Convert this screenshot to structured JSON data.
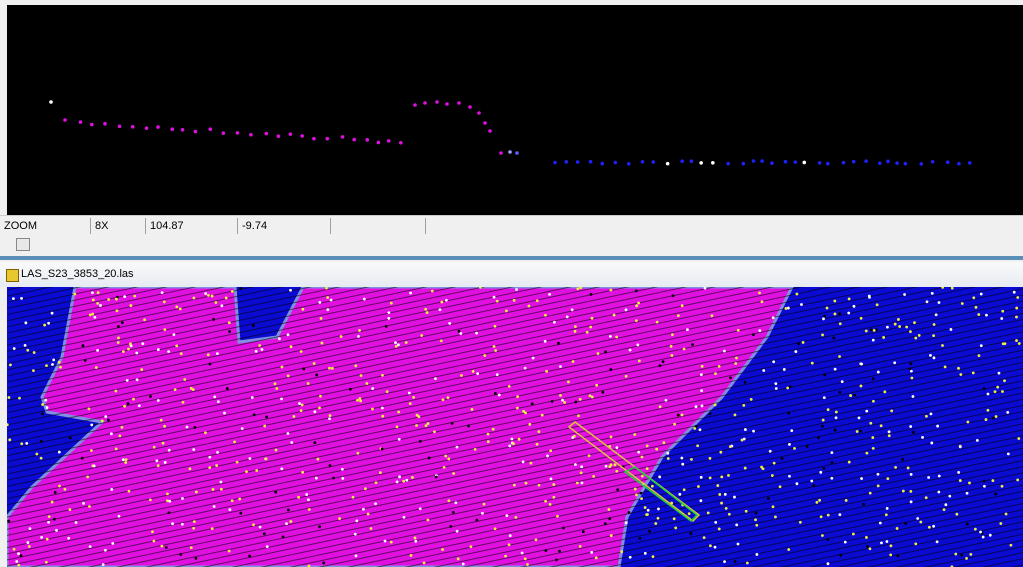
{
  "status_bar": {
    "mode": "ZOOM",
    "zoom": "8X",
    "x": "104.87",
    "y": "-9.74"
  },
  "window": {
    "title": "LAS_S23_3853_20.las"
  }
}
